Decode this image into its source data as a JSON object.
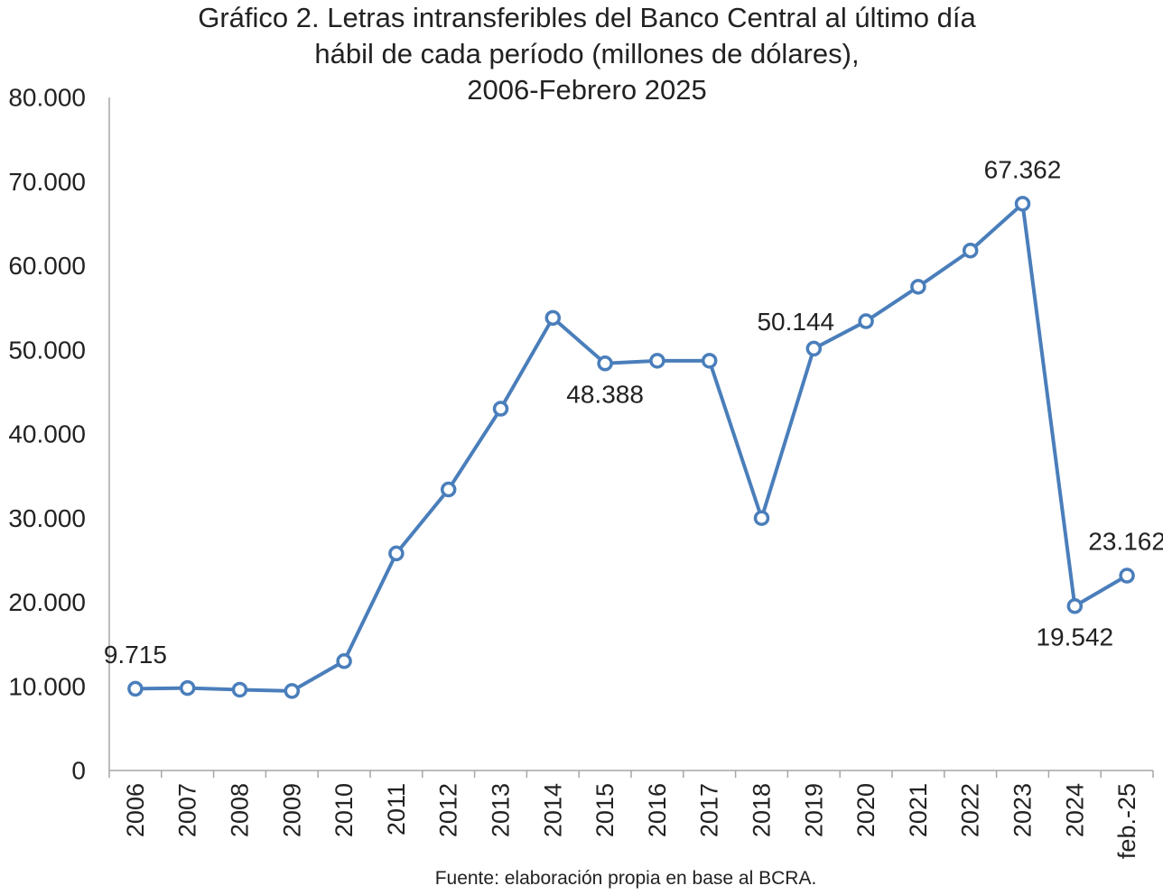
{
  "chart_data": {
    "type": "line",
    "title_lines": [
      "Gráfico 2. Letras intransferibles del Banco Central al último día",
      "hábil de cada período (millones de dólares),",
      "2006-Febrero 2025"
    ],
    "source": "Fuente: elaboración propia en base al BCRA.",
    "categories": [
      "2006",
      "2007",
      "2008",
      "2009",
      "2010",
      "2011",
      "2012",
      "2013",
      "2014",
      "2015",
      "2016",
      "2017",
      "2018",
      "2019",
      "2020",
      "2021",
      "2022",
      "2023",
      "2024",
      "feb.-25"
    ],
    "series": [
      {
        "values": [
          9715,
          9800,
          9600,
          9450,
          13000,
          25800,
          33400,
          43000,
          53800,
          48388,
          48700,
          48700,
          30000,
          50144,
          53400,
          57500,
          61800,
          67362,
          19542,
          23162
        ],
        "color": "#4a7ebb"
      }
    ],
    "data_labels": [
      {
        "index": 0,
        "text": "9.715",
        "position": "above"
      },
      {
        "index": 9,
        "text": "48.388",
        "position": "below"
      },
      {
        "index": 13,
        "text": "50.144",
        "position": "above-left"
      },
      {
        "index": 17,
        "text": "67.362",
        "position": "above"
      },
      {
        "index": 18,
        "text": "19.542",
        "position": "below"
      },
      {
        "index": 19,
        "text": "23.162",
        "position": "above"
      }
    ],
    "yticks": [
      "0",
      "10.000",
      "20.000",
      "30.000",
      "40.000",
      "50.000",
      "60.000",
      "70.000",
      "80.000"
    ],
    "ylim": [
      0,
      80000
    ],
    "ystep": 10000,
    "grid": false,
    "legend": "none"
  }
}
